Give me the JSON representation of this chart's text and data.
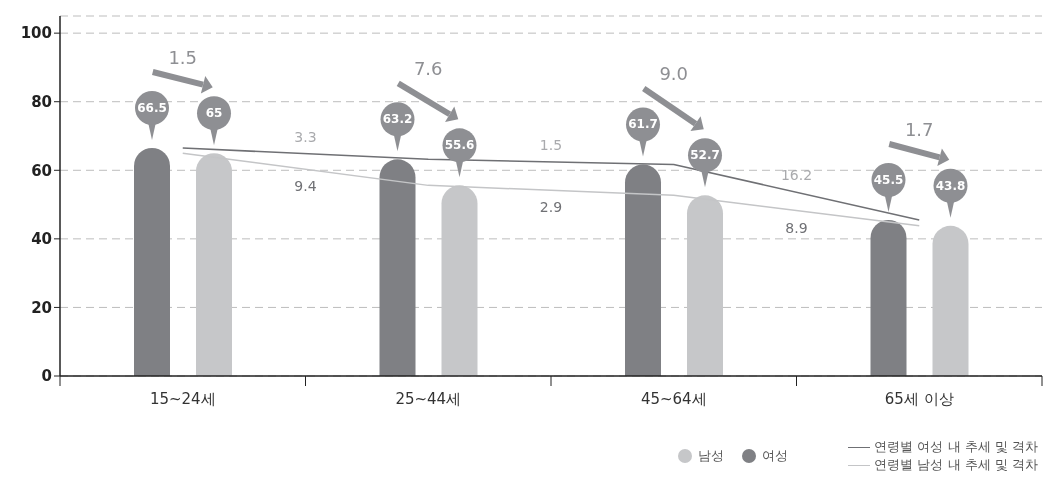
{
  "chart_data": {
    "type": "bar",
    "categories": [
      "15~24세",
      "25~44세",
      "45~64세",
      "65세 이상"
    ],
    "series": [
      {
        "name": "여성",
        "color": "#7f8084",
        "values": [
          66.5,
          63.2,
          61.7,
          45.5
        ]
      },
      {
        "name": "남성",
        "color": "#c6c7c9",
        "values": [
          65,
          55.6,
          52.7,
          43.8
        ]
      },
      {
        "name": "연령별 여성 내 추세 및 격차",
        "type": "line",
        "color": "#6f7074",
        "values": [
          66.5,
          63.2,
          61.7,
          45.5
        ],
        "value_labels": [
          null,
          null,
          null,
          null
        ]
      },
      {
        "name": "연령별 남성 내 추세 및 격차",
        "type": "line",
        "color": "#c4c5c7",
        "values": [
          65,
          55.6,
          52.7,
          43.8
        ],
        "value_labels": [
          null,
          null,
          null,
          null
        ]
      }
    ],
    "data_labels": true,
    "annotations": [
      "1.5",
      "7.6",
      "9.0",
      "1.7",
      "3.3",
      "1.5",
      "16.2",
      "9.4",
      "2.9",
      "8.9"
    ],
    "ylim": [
      0,
      105
    ],
    "yticks": [
      0,
      20,
      40,
      60,
      80,
      100
    ],
    "grid": "y",
    "legend": "bottom"
  }
}
